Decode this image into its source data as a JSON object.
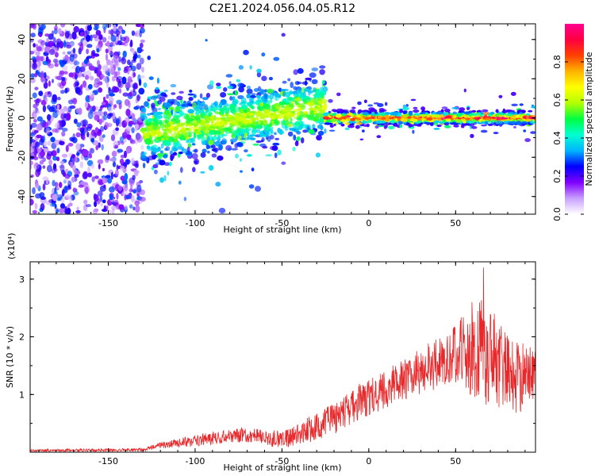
{
  "title": "C2E1.2024.056.04.05.R12",
  "chart_data": [
    {
      "type": "heatmap",
      "title": "C2E1.2024.056.04.05.R12",
      "xlabel": "Height of straight line (km)",
      "ylabel": "Frequency (Hz)",
      "xlim": [
        -195,
        96
      ],
      "ylim": [
        -49,
        48
      ],
      "x_ticks": [
        -150,
        -100,
        -50,
        0,
        50
      ],
      "y_ticks": [
        -40,
        -20,
        0,
        20,
        40
      ],
      "colorbar": {
        "label": "Normalized spectral amplitude",
        "range": [
          0.0,
          1.0
        ],
        "ticks": [
          0.0,
          0.2,
          0.4,
          0.6,
          0.8
        ],
        "colors": [
          "#ffffff",
          "#c9a0ff",
          "#8000ff",
          "#0000ff",
          "#00b4ff",
          "#00ffd0",
          "#00ff40",
          "#b4ff00",
          "#ffff00",
          "#ffb400",
          "#ff4000",
          "#ff0040",
          "#ff0090"
        ]
      },
      "regions": [
        {
          "x_range": [
            -195,
            -130
          ],
          "freq_spread": 48,
          "amp": [
            0.05,
            0.3
          ]
        },
        {
          "x_range": [
            -130,
            -25
          ],
          "freq_center": [
            -8,
            6
          ],
          "freq_spread": 8,
          "amp": [
            0.2,
            0.55
          ]
        },
        {
          "x_range": [
            -25,
            96
          ],
          "freq_center": 0,
          "freq_spread": 2,
          "amp": [
            0.4,
            1.0
          ]
        }
      ]
    },
    {
      "type": "line",
      "xlabel": "Height of straight line (km)",
      "ylabel": "SNR (10 * v/v)",
      "y_multiplier": "(x10⁴)",
      "xlim": [
        -195,
        96
      ],
      "ylim": [
        0,
        3.3
      ],
      "x_ticks": [
        -150,
        -100,
        -50,
        0,
        50
      ],
      "y_ticks": [
        1,
        2,
        3
      ],
      "series": [
        {
          "color": "#e8282a",
          "trend": {
            "x": [
              -195,
              -130,
              -120,
              -100,
              -80,
              -70,
              -60,
              -50,
              -40,
              -30,
              -20,
              -10,
              0,
              10,
              20,
              30,
              40,
              50,
              60,
              65,
              70,
              80,
              90,
              96
            ],
            "y": [
              0.03,
              0.04,
              0.12,
              0.2,
              0.28,
              0.3,
              0.25,
              0.22,
              0.3,
              0.45,
              0.6,
              0.8,
              0.95,
              1.1,
              1.25,
              1.4,
              1.55,
              1.7,
              1.75,
              1.8,
              1.6,
              1.4,
              1.3,
              1.3
            ]
          },
          "noise": {
            "x": [
              -195,
              -130,
              -100,
              -50,
              -20,
              20,
              50,
              60,
              70,
              96
            ],
            "amplitude": [
              0.02,
              0.03,
              0.1,
              0.15,
              0.3,
              0.35,
              0.5,
              0.9,
              0.9,
              0.5
            ]
          },
          "peak": {
            "x": 66,
            "y": 3.2
          }
        }
      ]
    }
  ]
}
